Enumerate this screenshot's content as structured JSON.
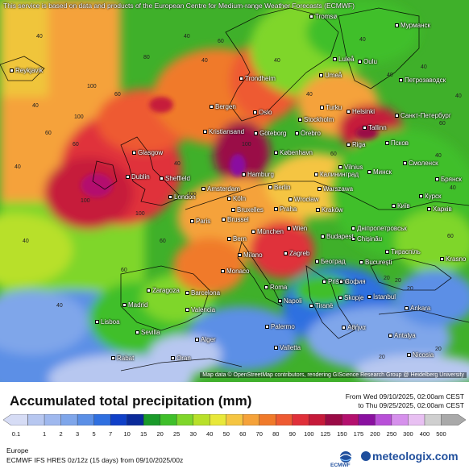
{
  "map": {
    "attribution_top": "This service is based on data and products of the European Centre for Medium-range Weather Forecasts (ECMWF)",
    "attribution_bottom": "Map data © OpenStreetMap contributors, rendering GIScience Research Group @ Heidelberg University",
    "cities": [
      {
        "name": "Reykjavik"
      },
      {
        "name": "Tromsø"
      },
      {
        "name": "Мурманск"
      },
      {
        "name": "Luleå"
      },
      {
        "name": "Oulu"
      },
      {
        "name": "Trondheim"
      },
      {
        "name": "Umeå"
      },
      {
        "name": "Петрозаводск"
      },
      {
        "name": "Bergen"
      },
      {
        "name": "Oslo"
      },
      {
        "name": "Turku"
      },
      {
        "name": "Helsinki"
      },
      {
        "name": "Санкт-Петербург"
      },
      {
        "name": "Stockholm"
      },
      {
        "name": "Tallinn"
      },
      {
        "name": "Kristiansand"
      },
      {
        "name": "Göteborg"
      },
      {
        "name": "Örebro"
      },
      {
        "name": "Псков"
      },
      {
        "name": "Riga"
      },
      {
        "name": "Glasgow"
      },
      {
        "name": "København"
      },
      {
        "name": "Смоленск"
      },
      {
        "name": "Vilnius"
      },
      {
        "name": "Минск"
      },
      {
        "name": "Dublin"
      },
      {
        "name": "Sheffield"
      },
      {
        "name": "Hamburg"
      },
      {
        "name": "Калининград"
      },
      {
        "name": "Брянск"
      },
      {
        "name": "Amsterdam"
      },
      {
        "name": "Berlin"
      },
      {
        "name": "Warszawa"
      },
      {
        "name": "Курск"
      },
      {
        "name": "London"
      },
      {
        "name": "Köln"
      },
      {
        "name": "Wrocław"
      },
      {
        "name": "Київ"
      },
      {
        "name": "Харків"
      },
      {
        "name": "Bruxelles"
      },
      {
        "name": "Praha"
      },
      {
        "name": "Kraków"
      },
      {
        "name": "Paris"
      },
      {
        "name": "Brussel"
      },
      {
        "name": "Дніпропетровськ"
      },
      {
        "name": "München"
      },
      {
        "name": "Wien"
      },
      {
        "name": "Chișinău"
      },
      {
        "name": "Bern"
      },
      {
        "name": "Budapest"
      },
      {
        "name": "Тираспіль"
      },
      {
        "name": "Milano"
      },
      {
        "name": "Zagreb"
      },
      {
        "name": "Београд"
      },
      {
        "name": "București"
      },
      {
        "name": "Monaco"
      },
      {
        "name": "Krasno"
      },
      {
        "name": "Roma"
      },
      {
        "name": "Priština"
      },
      {
        "name": "София"
      },
      {
        "name": "Zaragoza"
      },
      {
        "name": "Barcelona"
      },
      {
        "name": "Madrid"
      },
      {
        "name": "Napoli"
      },
      {
        "name": "Tiranë"
      },
      {
        "name": "Skopje"
      },
      {
        "name": "İstanbul"
      },
      {
        "name": "Ankara"
      },
      {
        "name": "Valencia"
      },
      {
        "name": "Lisboa"
      },
      {
        "name": "Palermo"
      },
      {
        "name": "Αθήνα"
      },
      {
        "name": "Sevilla"
      },
      {
        "name": "Alger"
      },
      {
        "name": "Antalya"
      },
      {
        "name": "Valletta"
      },
      {
        "name": "Rabat"
      },
      {
        "name": "Oran"
      },
      {
        "name": "Nicosia"
      }
    ],
    "values": [
      "40",
      "60",
      "40",
      "100",
      "40",
      "60",
      "40",
      "100",
      "60",
      "40",
      "80",
      "40",
      "60",
      "40",
      "100",
      "40",
      "60",
      "40",
      "40",
      "100",
      "40",
      "60",
      "40",
      "20",
      "40",
      "60",
      "20",
      "40",
      "100",
      "60",
      "20",
      "40",
      "20",
      "60",
      "40",
      "20",
      "100"
    ]
  },
  "title": "Accumulated total precipitation (mm)",
  "period": {
    "from": "From Wed 09/10/2025, 02:00am CEST",
    "to": "to Thu 09/25/2025, 02:00am CEST"
  },
  "scale": {
    "labels": [
      "0.1",
      "1",
      "2",
      "3",
      "5",
      "7",
      "10",
      "15",
      "20",
      "25",
      "30",
      "40",
      "50",
      "60",
      "70",
      "80",
      "90",
      "100",
      "125",
      "150",
      "175",
      "200",
      "250",
      "300",
      "400",
      "500"
    ],
    "colors": [
      "#d6dcf5",
      "#b7c7f0",
      "#9fb8ee",
      "#7fa6ea",
      "#5b8fe6",
      "#2f6fe0",
      "#1040c8",
      "#0a2a9a",
      "#1a9a2a",
      "#3fbf2a",
      "#7fd62a",
      "#b8e02a",
      "#e8e83a",
      "#f5c542",
      "#f5a23a",
      "#f07a2a",
      "#ee5a32",
      "#e0303a",
      "#c61a3a",
      "#9a0a46",
      "#b4106e",
      "#8a10a0",
      "#b850d8",
      "#d690ec",
      "#e8c0f2",
      "#cfcfcf",
      "#a9a9a9"
    ]
  },
  "footer": {
    "region": "Europe",
    "model": "ECMWF IFS HRES 0z/12z (15 days) from  09/10/2025/00z",
    "ecmwf_label": "ECMWF",
    "brand": "meteologix.com"
  }
}
